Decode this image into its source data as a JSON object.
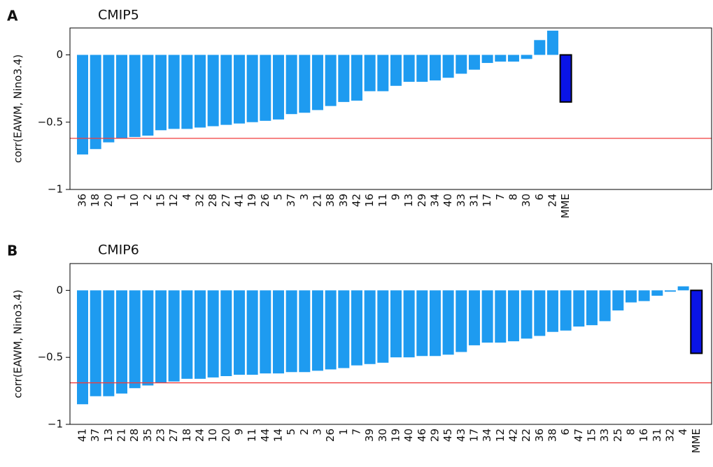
{
  "chart_data": [
    {
      "type": "bar",
      "panel_label": "A",
      "title": "CMIP5",
      "y_label": "corr(EAWM, Nino3.4)",
      "categories": [
        "36",
        "18",
        "20",
        "1",
        "10",
        "2",
        "15",
        "12",
        "4",
        "32",
        "28",
        "27",
        "41",
        "19",
        "26",
        "5",
        "37",
        "3",
        "21",
        "38",
        "39",
        "42",
        "16",
        "11",
        "9",
        "13",
        "29",
        "34",
        "40",
        "33",
        "31",
        "17",
        "7",
        "8",
        "30",
        "6",
        "24",
        "MME"
      ],
      "values": [
        -0.74,
        -0.7,
        -0.65,
        -0.62,
        -0.61,
        -0.6,
        -0.56,
        -0.55,
        -0.55,
        -0.54,
        -0.53,
        -0.52,
        -0.51,
        -0.5,
        -0.49,
        -0.48,
        -0.44,
        -0.43,
        -0.41,
        -0.38,
        -0.35,
        -0.34,
        -0.27,
        -0.27,
        -0.23,
        -0.2,
        -0.2,
        -0.19,
        -0.17,
        -0.14,
        -0.11,
        -0.06,
        -0.05,
        -0.05,
        -0.03,
        0.11,
        0.18,
        -0.35
      ],
      "colors": [
        "#1e9bf0",
        "#1e9bf0",
        "#1e9bf0",
        "#1e9bf0",
        "#1e9bf0",
        "#1e9bf0",
        "#1e9bf0",
        "#1e9bf0",
        "#1e9bf0",
        "#1e9bf0",
        "#1e9bf0",
        "#1e9bf0",
        "#1e9bf0",
        "#1e9bf0",
        "#1e9bf0",
        "#1e9bf0",
        "#1e9bf0",
        "#1e9bf0",
        "#1e9bf0",
        "#1e9bf0",
        "#1e9bf0",
        "#1e9bf0",
        "#1e9bf0",
        "#1e9bf0",
        "#1e9bf0",
        "#1e9bf0",
        "#1e9bf0",
        "#1e9bf0",
        "#1e9bf0",
        "#1e9bf0",
        "#1e9bf0",
        "#1e9bf0",
        "#1e9bf0",
        "#1e9bf0",
        "#1e9bf0",
        "#1e9bf0",
        "#1e9bf0",
        "#0a14e6"
      ],
      "reference_line": -0.62,
      "reference_color": "#f03c3c",
      "ylim": [
        -1,
        0.2
      ],
      "yticks": [
        {
          "value": -1,
          "label": "−1"
        },
        {
          "value": -0.5,
          "label": "−0.5"
        },
        0
      ]
    },
    {
      "type": "bar",
      "panel_label": "B",
      "title": "CMIP6",
      "y_label": "corr(EAWM, Nino3.4)",
      "categories": [
        "41",
        "37",
        "13",
        "21",
        "28",
        "35",
        "23",
        "27",
        "18",
        "24",
        "10",
        "20",
        "9",
        "11",
        "44",
        "14",
        "5",
        "2",
        "3",
        "26",
        "1",
        "7",
        "39",
        "30",
        "19",
        "40",
        "46",
        "29",
        "45",
        "43",
        "17",
        "34",
        "12",
        "42",
        "22",
        "36",
        "38",
        "6",
        "47",
        "15",
        "33",
        "25",
        "8",
        "16",
        "31",
        "32",
        "4",
        "MME"
      ],
      "values": [
        -0.85,
        -0.79,
        -0.79,
        -0.77,
        -0.73,
        -0.71,
        -0.69,
        -0.68,
        -0.66,
        -0.66,
        -0.65,
        -0.64,
        -0.63,
        -0.63,
        -0.62,
        -0.62,
        -0.61,
        -0.61,
        -0.6,
        -0.59,
        -0.58,
        -0.56,
        -0.55,
        -0.54,
        -0.5,
        -0.5,
        -0.49,
        -0.49,
        -0.48,
        -0.46,
        -0.41,
        -0.39,
        -0.39,
        -0.38,
        -0.36,
        -0.34,
        -0.31,
        -0.3,
        -0.27,
        -0.26,
        -0.23,
        -0.15,
        -0.09,
        -0.08,
        -0.04,
        -0.01,
        0.03,
        -0.47
      ],
      "colors": [
        "#1e9bf0",
        "#1e9bf0",
        "#1e9bf0",
        "#1e9bf0",
        "#1e9bf0",
        "#1e9bf0",
        "#1e9bf0",
        "#1e9bf0",
        "#1e9bf0",
        "#1e9bf0",
        "#1e9bf0",
        "#1e9bf0",
        "#1e9bf0",
        "#1e9bf0",
        "#1e9bf0",
        "#1e9bf0",
        "#1e9bf0",
        "#1e9bf0",
        "#1e9bf0",
        "#1e9bf0",
        "#1e9bf0",
        "#1e9bf0",
        "#1e9bf0",
        "#1e9bf0",
        "#1e9bf0",
        "#1e9bf0",
        "#1e9bf0",
        "#1e9bf0",
        "#1e9bf0",
        "#1e9bf0",
        "#1e9bf0",
        "#1e9bf0",
        "#1e9bf0",
        "#1e9bf0",
        "#1e9bf0",
        "#1e9bf0",
        "#1e9bf0",
        "#1e9bf0",
        "#1e9bf0",
        "#1e9bf0",
        "#1e9bf0",
        "#1e9bf0",
        "#1e9bf0",
        "#1e9bf0",
        "#1e9bf0",
        "#1e9bf0",
        "#1e9bf0",
        "#0a14e6"
      ],
      "reference_line": -0.69,
      "reference_color": "#f03c3c",
      "ylim": [
        -1,
        0.2
      ],
      "yticks": [
        {
          "value": -1,
          "label": "−1"
        },
        {
          "value": -0.5,
          "label": "−0.5"
        },
        0
      ]
    }
  ]
}
